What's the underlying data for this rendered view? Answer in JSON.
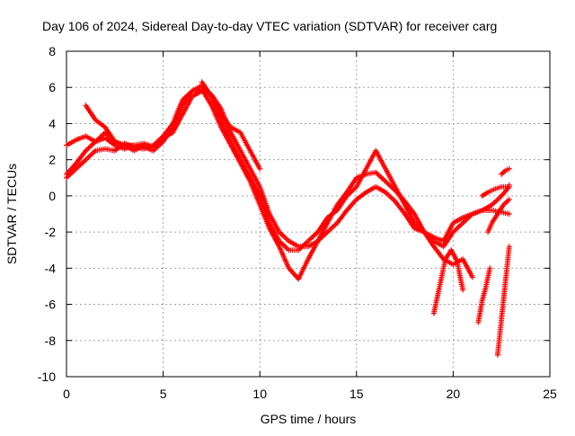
{
  "chart_data": {
    "type": "scatter",
    "title": "Day 106 of 2024, Sidereal Day-to-day VTEC variation (SDTVAR) for receiver carg",
    "xlabel": "GPS time / hours",
    "ylabel": "SDTVAR / TECUs",
    "xlim": [
      0,
      25
    ],
    "ylim": [
      -10,
      8
    ],
    "xticks": [
      0,
      5,
      10,
      15,
      20,
      25
    ],
    "yticks": [
      -10,
      -8,
      -6,
      -4,
      -2,
      0,
      2,
      4,
      6,
      8
    ],
    "grid": true,
    "marker": "+",
    "color": "#ff0000",
    "series": [
      {
        "x": [
          0.0,
          0.5,
          1.0,
          1.5,
          2.0,
          2.5,
          3.0,
          3.5,
          4.0,
          4.5,
          5.0,
          5.5,
          6.0,
          6.5,
          7.0,
          7.5,
          8.0,
          8.5,
          9.0,
          9.5,
          10.0,
          10.5,
          11.0,
          11.5,
          12.0,
          12.5,
          13.0,
          13.5,
          14.0,
          14.5,
          15.0,
          15.5,
          16.0,
          16.5,
          17.0,
          17.5,
          18.0,
          18.5,
          19.0,
          19.5,
          20.0,
          20.5,
          21.0,
          21.5,
          22.0,
          22.5,
          22.9
        ],
        "y": [
          2.8,
          3.1,
          3.3,
          3.0,
          3.5,
          3.0,
          2.8,
          2.8,
          2.9,
          2.7,
          3.2,
          3.5,
          4.5,
          5.5,
          5.8,
          5.6,
          4.8,
          3.5,
          2.5,
          1.5,
          0.5,
          -1.0,
          -2.0,
          -2.5,
          -2.8,
          -2.8,
          -2.5,
          -1.5,
          -0.5,
          0.2,
          1.0,
          1.2,
          1.3,
          0.8,
          0.3,
          -0.3,
          -1.0,
          -2.0,
          -2.5,
          -2.8,
          -2.0,
          -1.5,
          -1.0,
          -0.8,
          -0.8,
          -0.9,
          -1.0
        ]
      },
      {
        "x": [
          0.0,
          0.5,
          1.0,
          1.5,
          2.0,
          2.5,
          3.0,
          3.5,
          4.0,
          4.5,
          5.0,
          5.5,
          6.0,
          6.5,
          7.0,
          7.5,
          8.0,
          8.5,
          9.0,
          9.5,
          10.0,
          10.5,
          11.0,
          11.5,
          12.0,
          12.5,
          13.0,
          13.5,
          14.0,
          14.5,
          15.0,
          15.5,
          16.0,
          16.5,
          17.0,
          17.5,
          18.0,
          18.5,
          19.0,
          19.5,
          20.0,
          20.5,
          21.0
        ],
        "y": [
          1.2,
          1.8,
          2.5,
          3.0,
          3.2,
          2.8,
          2.6,
          2.8,
          2.7,
          2.5,
          3.0,
          3.8,
          5.0,
          5.8,
          6.1,
          5.5,
          4.2,
          3.0,
          2.0,
          1.0,
          0.0,
          -1.5,
          -2.5,
          -3.0,
          -3.0,
          -2.5,
          -2.0,
          -1.2,
          -0.8,
          0.0,
          0.5,
          1.5,
          2.5,
          1.5,
          0.5,
          -0.5,
          -1.5,
          -2.0,
          -2.8,
          -3.5,
          -3.8,
          -3.5,
          -4.5
        ]
      },
      {
        "x": [
          0.0,
          0.5,
          1.0,
          1.5,
          2.0,
          2.5,
          3.0,
          3.5,
          4.0,
          4.5,
          5.0,
          5.5,
          6.0,
          6.5,
          7.0,
          7.5,
          8.0,
          8.5,
          9.0,
          9.5,
          10.0,
          10.5,
          11.0,
          11.5,
          12.0,
          12.5,
          13.0,
          13.5,
          14.0,
          14.5,
          15.0,
          15.5,
          16.0,
          16.5,
          17.0,
          17.5,
          18.0,
          18.5,
          19.0,
          19.5,
          20.0,
          20.5,
          21.0,
          21.5,
          22.0,
          22.5,
          22.9
        ],
        "y": [
          1.0,
          1.5,
          2.0,
          2.5,
          2.6,
          2.5,
          2.9,
          2.7,
          2.6,
          2.8,
          3.3,
          4.0,
          5.3,
          5.8,
          5.9,
          5.0,
          3.8,
          2.8,
          1.8,
          0.8,
          -0.5,
          -1.8,
          -2.8,
          -4.0,
          -4.6,
          -3.5,
          -2.5,
          -2.0,
          -1.5,
          -0.8,
          -0.2,
          0.2,
          0.5,
          0.2,
          -0.3,
          -1.0,
          -1.8,
          -2.0,
          -2.3,
          -2.5,
          -1.5,
          -1.2,
          -1.0,
          -0.8,
          -0.5,
          0.0,
          0.5
        ]
      },
      {
        "x": [
          1.0,
          1.5,
          2.0,
          2.5,
          3.0,
          3.5,
          4.0
        ],
        "y": [
          5.0,
          4.2,
          3.8,
          3.0,
          2.8,
          2.5,
          2.8
        ]
      },
      {
        "x": [
          7.0,
          7.5,
          8.0,
          8.5,
          9.0,
          9.5,
          10.0
        ],
        "y": [
          6.3,
          5.5,
          4.5,
          3.8,
          3.5,
          2.5,
          1.5
        ]
      },
      {
        "x": [
          19.0,
          19.3,
          19.6,
          19.9,
          20.2,
          20.5
        ],
        "y": [
          -6.5,
          -5.0,
          -3.5,
          -3.0,
          -3.6,
          -5.2
        ]
      },
      {
        "x": [
          21.3,
          21.5,
          21.7,
          21.9
        ],
        "y": [
          -7.0,
          -5.8,
          -5.0,
          -4.0
        ]
      },
      {
        "x": [
          22.3,
          22.5,
          22.7,
          22.9
        ],
        "y": [
          -8.8,
          -6.8,
          -4.8,
          -2.8
        ]
      },
      {
        "x": [
          21.8,
          22.0,
          22.3,
          22.6,
          22.9
        ],
        "y": [
          -2.0,
          -1.5,
          -1.0,
          -0.5,
          -0.2
        ]
      },
      {
        "x": [
          21.5,
          21.8,
          22.0,
          22.2,
          22.5,
          22.8,
          22.9
        ],
        "y": [
          0.0,
          0.2,
          0.3,
          0.4,
          0.5,
          0.5,
          0.6
        ]
      },
      {
        "x": [
          22.5,
          22.7,
          22.9
        ],
        "y": [
          1.2,
          1.4,
          1.5
        ]
      }
    ]
  }
}
